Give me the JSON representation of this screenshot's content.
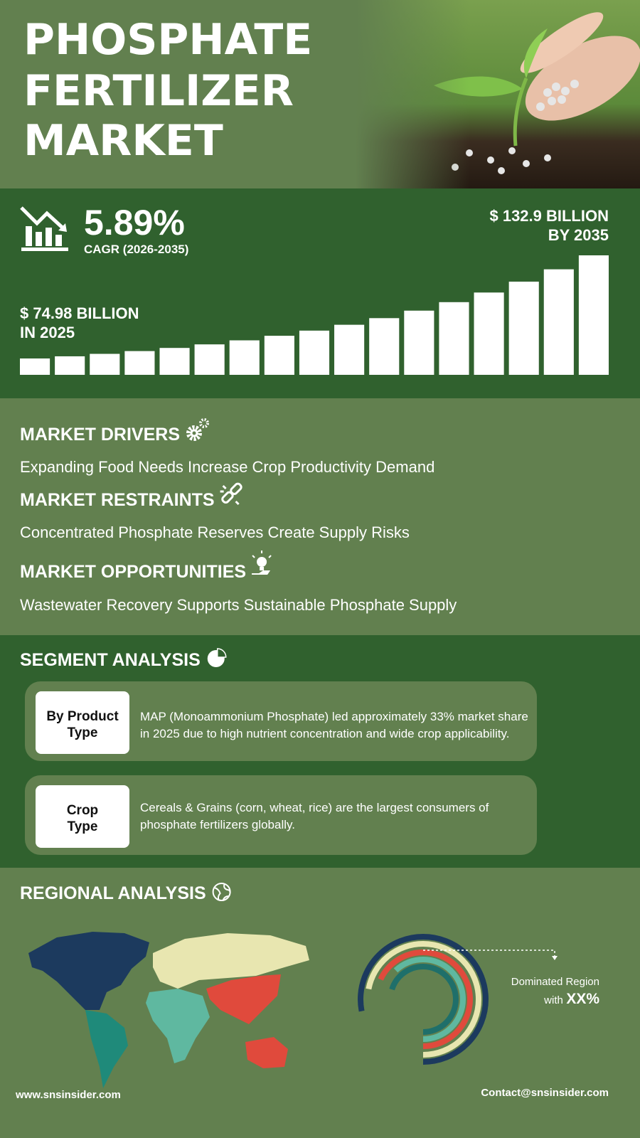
{
  "header": {
    "title": [
      "PHOSPHATE",
      "FERTILIZER",
      "MARKET"
    ]
  },
  "stats": {
    "cagr": "5.89%",
    "cagr_label": "CAGR (2026-2035)",
    "end_value": [
      "$ 132.9 BILLION",
      "BY 2035"
    ],
    "start_value": [
      "$ 74.98 BILLION",
      "IN 2025"
    ]
  },
  "dynamics": [
    {
      "heading": "MARKET DRIVERS",
      "text": "Expanding Food Needs Increase Crop Productivity Demand"
    },
    {
      "heading": "MARKET RESTRAINTS",
      "text": "Concentrated Phosphate Reserves Create Supply Risks"
    },
    {
      "heading": "MARKET OPPORTUNITIES",
      "text": "Wastewater Recovery Supports Sustainable Phosphate Supply"
    }
  ],
  "segment": {
    "title": "SEGMENT ANALYSIS",
    "items": [
      {
        "label": [
          "By Product",
          "Type"
        ],
        "text": [
          "MAP (Monoammonium Phosphate) led approximately 33% market share",
          "in 2025 due to high nutrient concentration and wide crop applicability."
        ]
      },
      {
        "label": [
          "Crop",
          "Type"
        ],
        "text": [
          "Cereals & Grains (corn, wheat, rice) are the largest consumers of",
          "phosphate fertilizers globally."
        ]
      }
    ]
  },
  "regional": {
    "title": "REGIONAL ANALYSIS",
    "note": [
      "Dominated Region",
      "with"
    ],
    "highlight": "XX%"
  },
  "footer": {
    "website": "www.snsinsider.com",
    "contact": "Contact@snsinsider.com"
  }
}
